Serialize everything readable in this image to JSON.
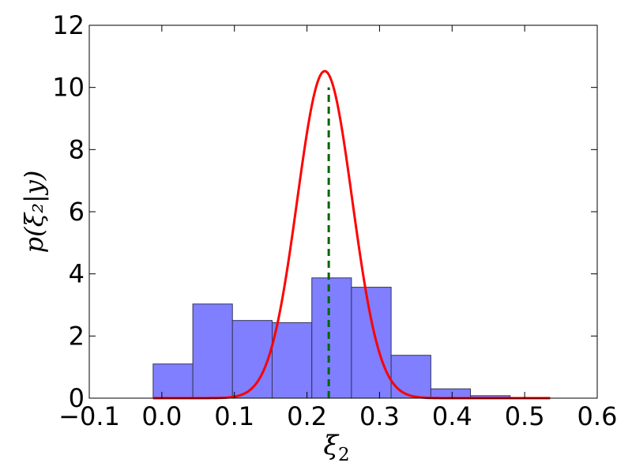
{
  "chart_data": {
    "type": "histogram",
    "xlabel": "ξ",
    "xlabel_subscript": "2",
    "ylabel": "p(ξ₂|y)",
    "xlim": [
      -0.1,
      0.6
    ],
    "ylim": [
      0,
      12
    ],
    "xticks": [
      -0.1,
      0.0,
      0.1,
      0.2,
      0.3,
      0.4,
      0.5,
      0.6
    ],
    "xtick_labels": [
      "−0.1",
      "0.0",
      "0.1",
      "0.2",
      "0.3",
      "0.4",
      "0.5",
      "0.6"
    ],
    "yticks": [
      0,
      2,
      4,
      6,
      8,
      10,
      12
    ],
    "ytick_labels": [
      "0",
      "2",
      "4",
      "6",
      "8",
      "10",
      "12"
    ],
    "grid": false,
    "histogram": {
      "color": "#7f7fff",
      "edge_color": "#34345a",
      "bin_edges": [
        -0.012,
        0.0427,
        0.0973,
        0.152,
        0.2067,
        0.2613,
        0.316,
        0.3707,
        0.4253,
        0.48,
        0.5347
      ],
      "values": [
        1.1,
        3.03,
        2.5,
        2.43,
        3.87,
        3.57,
        1.38,
        0.3,
        0.08,
        0.02
      ]
    },
    "density_curve": {
      "color": "#ff0000",
      "mean": 0.2245,
      "std": 0.0379,
      "x_range": [
        -0.012,
        0.535
      ]
    },
    "reference_line": {
      "color": "#006400",
      "style": "dashed",
      "x": 0.23,
      "y_range": [
        0,
        10
      ]
    }
  }
}
